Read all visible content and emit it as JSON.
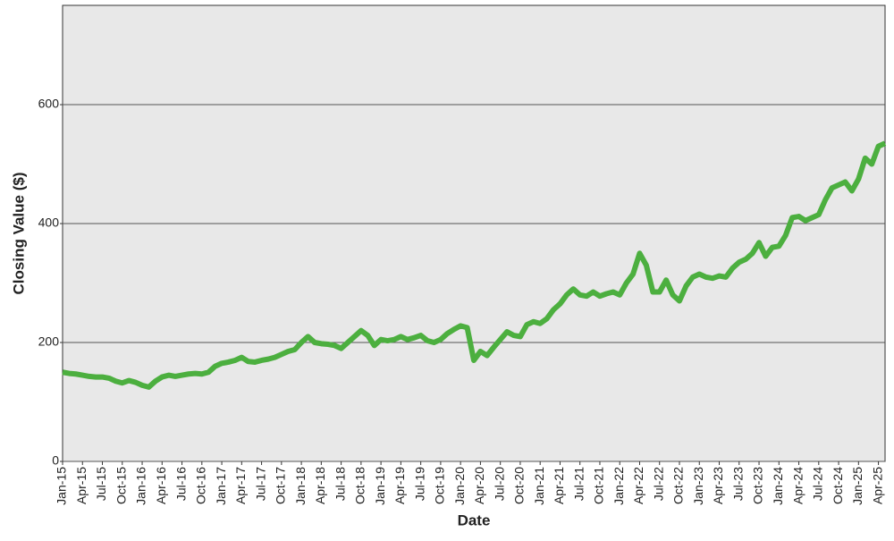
{
  "chart_data": {
    "type": "line",
    "x_label": "Date",
    "y_label": "Closing Value ($)",
    "xlim": [
      "2015-01",
      "2025-05"
    ],
    "ylim": [
      0,
      767
    ],
    "yticks": [
      0,
      200,
      400,
      600
    ],
    "grid": true,
    "xticks": [
      {
        "value": "2015-01",
        "label": "Jan-15"
      },
      {
        "value": "2015-04",
        "label": "Apr-15"
      },
      {
        "value": "2015-07",
        "label": "Jul-15"
      },
      {
        "value": "2015-10",
        "label": "Oct-15"
      },
      {
        "value": "2016-01",
        "label": "Jan-16"
      },
      {
        "value": "2016-04",
        "label": "Apr-16"
      },
      {
        "value": "2016-07",
        "label": "Jul-16"
      },
      {
        "value": "2016-10",
        "label": "Oct-16"
      },
      {
        "value": "2017-01",
        "label": "Jan-17"
      },
      {
        "value": "2017-04",
        "label": "Apr-17"
      },
      {
        "value": "2017-07",
        "label": "Jul-17"
      },
      {
        "value": "2017-10",
        "label": "Oct-17"
      },
      {
        "value": "2018-01",
        "label": "Jan-18"
      },
      {
        "value": "2018-04",
        "label": "Apr-18"
      },
      {
        "value": "2018-07",
        "label": "Jul-18"
      },
      {
        "value": "2018-10",
        "label": "Oct-18"
      },
      {
        "value": "2019-01",
        "label": "Jan-19"
      },
      {
        "value": "2019-04",
        "label": "Apr-19"
      },
      {
        "value": "2019-07",
        "label": "Jul-19"
      },
      {
        "value": "2019-10",
        "label": "Oct-19"
      },
      {
        "value": "2020-01",
        "label": "Jan-20"
      },
      {
        "value": "2020-04",
        "label": "Apr-20"
      },
      {
        "value": "2020-07",
        "label": "Jul-20"
      },
      {
        "value": "2020-10",
        "label": "Oct-20"
      },
      {
        "value": "2021-01",
        "label": "Jan-21"
      },
      {
        "value": "2021-04",
        "label": "Apr-21"
      },
      {
        "value": "2021-07",
        "label": "Jul-21"
      },
      {
        "value": "2021-10",
        "label": "Oct-21"
      },
      {
        "value": "2022-01",
        "label": "Jan-22"
      },
      {
        "value": "2022-04",
        "label": "Apr-22"
      },
      {
        "value": "2022-07",
        "label": "Jul-22"
      },
      {
        "value": "2022-10",
        "label": "Oct-22"
      },
      {
        "value": "2023-01",
        "label": "Jan-23"
      },
      {
        "value": "2023-04",
        "label": "Apr-23"
      },
      {
        "value": "2023-07",
        "label": "Jul-23"
      },
      {
        "value": "2023-10",
        "label": "Oct-23"
      },
      {
        "value": "2024-01",
        "label": "Jan-24"
      },
      {
        "value": "2024-04",
        "label": "Apr-24"
      },
      {
        "value": "2024-07",
        "label": "Jul-24"
      },
      {
        "value": "2024-10",
        "label": "Oct-24"
      },
      {
        "value": "2025-01",
        "label": "Jan-25"
      },
      {
        "value": "2025-04",
        "label": "Apr-25"
      }
    ],
    "x": [
      "2015-01",
      "2015-02",
      "2015-03",
      "2015-04",
      "2015-05",
      "2015-06",
      "2015-07",
      "2015-08",
      "2015-09",
      "2015-10",
      "2015-11",
      "2015-12",
      "2016-01",
      "2016-02",
      "2016-03",
      "2016-04",
      "2016-05",
      "2016-06",
      "2016-07",
      "2016-08",
      "2016-09",
      "2016-10",
      "2016-11",
      "2016-12",
      "2017-01",
      "2017-02",
      "2017-03",
      "2017-04",
      "2017-05",
      "2017-06",
      "2017-07",
      "2017-08",
      "2017-09",
      "2017-10",
      "2017-11",
      "2017-12",
      "2018-01",
      "2018-02",
      "2018-03",
      "2018-04",
      "2018-05",
      "2018-06",
      "2018-07",
      "2018-08",
      "2018-09",
      "2018-10",
      "2018-11",
      "2018-12",
      "2019-01",
      "2019-02",
      "2019-03",
      "2019-04",
      "2019-05",
      "2019-06",
      "2019-07",
      "2019-08",
      "2019-09",
      "2019-10",
      "2019-11",
      "2019-12",
      "2020-01",
      "2020-02",
      "2020-03",
      "2020-04",
      "2020-05",
      "2020-06",
      "2020-07",
      "2020-08",
      "2020-09",
      "2020-10",
      "2020-11",
      "2020-12",
      "2021-01",
      "2021-02",
      "2021-03",
      "2021-04",
      "2021-05",
      "2021-06",
      "2021-07",
      "2021-08",
      "2021-09",
      "2021-10",
      "2021-11",
      "2021-12",
      "2022-01",
      "2022-02",
      "2022-03",
      "2022-04",
      "2022-05",
      "2022-06",
      "2022-07",
      "2022-08",
      "2022-09",
      "2022-10",
      "2022-11",
      "2022-12",
      "2023-01",
      "2023-02",
      "2023-03",
      "2023-04",
      "2023-05",
      "2023-06",
      "2023-07",
      "2023-08",
      "2023-09",
      "2023-10",
      "2023-11",
      "2023-12",
      "2024-01",
      "2024-02",
      "2024-03",
      "2024-04",
      "2024-05",
      "2024-06",
      "2024-07",
      "2024-08",
      "2024-09",
      "2024-10",
      "2024-11",
      "2024-12",
      "2025-01",
      "2025-02",
      "2025-03",
      "2025-04",
      "2025-05"
    ],
    "series": [
      {
        "color": "#4caf3f",
        "values": [
          150,
          148,
          147,
          145,
          143,
          142,
          142,
          140,
          135,
          132,
          136,
          133,
          128,
          125,
          135,
          142,
          145,
          143,
          145,
          147,
          148,
          147,
          150,
          160,
          165,
          167,
          170,
          175,
          168,
          167,
          170,
          172,
          175,
          180,
          185,
          188,
          200,
          210,
          200,
          198,
          197,
          195,
          190,
          200,
          210,
          220,
          212,
          195,
          205,
          203,
          205,
          210,
          205,
          208,
          212,
          203,
          200,
          205,
          215,
          222,
          228,
          225,
          170,
          185,
          178,
          192,
          205,
          218,
          212,
          210,
          230,
          235,
          232,
          240,
          255,
          265,
          280,
          290,
          280,
          278,
          285,
          278,
          282,
          285,
          280,
          300,
          315,
          350,
          330,
          285,
          285,
          305,
          280,
          270,
          295,
          310,
          315,
          310,
          308,
          312,
          310,
          325,
          335,
          340,
          350,
          368,
          345,
          360,
          362,
          380,
          410,
          412,
          405,
          410,
          415,
          440,
          460,
          465,
          470,
          455,
          475,
          510,
          500,
          530,
          535
        ]
      }
    ]
  }
}
